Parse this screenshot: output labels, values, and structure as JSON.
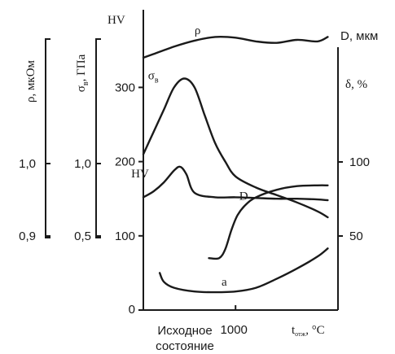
{
  "chart_data": {
    "type": "line",
    "xlabel_prefix": "t",
    "xlabel_sub": "отж",
    "xlabel_suffix": ", °C",
    "x_category": {
      "line1": "Исходное",
      "line2": "состояние"
    },
    "x_tick": "1000",
    "xlim": [
      550,
      1500
    ],
    "axes": {
      "rho": {
        "label": "ρ, мкОм",
        "ticks": [
          "1,0",
          "0,9"
        ],
        "tick_values": [
          1.0,
          0.9
        ]
      },
      "sigma": {
        "label_main": "σ",
        "label_sub": "в",
        "label_rest": ", ГПа",
        "ticks": [
          "1,0",
          "0,5"
        ],
        "tick_values": [
          1.0,
          0.5
        ]
      },
      "hv": {
        "label": "HV",
        "ticks": [
          "300",
          "200",
          "100",
          "0"
        ],
        "tick_values": [
          300,
          200,
          100,
          0
        ],
        "ylim": [
          0,
          400
        ]
      },
      "d": {
        "label": "D, мкм",
        "ticks": [],
        "tick_values": []
      },
      "delta": {
        "label": "δ, %",
        "ticks": [
          "100",
          "50"
        ],
        "tick_values": [
          100,
          50
        ]
      }
    },
    "series": [
      {
        "name": "ρ",
        "scale": "hv",
        "x": [
          550,
          600,
          700,
          800,
          900,
          1000,
          1100,
          1200,
          1300,
          1400,
          1450
        ],
        "y": [
          340,
          345,
          355,
          363,
          368,
          367,
          362,
          360,
          364,
          362,
          368
        ]
      },
      {
        "name": "σв",
        "scale": "hv",
        "x": [
          550,
          600,
          650,
          700,
          750,
          800,
          850,
          900,
          950,
          1000,
          1100,
          1200,
          1300,
          1400,
          1450
        ],
        "y": [
          210,
          240,
          270,
          300,
          312,
          300,
          262,
          225,
          200,
          180,
          165,
          155,
          145,
          133,
          125
        ]
      },
      {
        "name": "HV",
        "scale": "hv",
        "x": [
          550,
          600,
          650,
          700,
          730,
          760,
          800,
          900,
          1000,
          1100,
          1200,
          1300,
          1400,
          1450
        ],
        "y": [
          152,
          160,
          172,
          188,
          193,
          183,
          158,
          152,
          152,
          151,
          150,
          150,
          149,
          148
        ],
        "label_name": "HV"
      },
      {
        "name": "D",
        "scale": "hv",
        "x": [
          870,
          920,
          950,
          980,
          1010,
          1050,
          1100,
          1200,
          1300,
          1400,
          1450
        ],
        "y": [
          70,
          70,
          82,
          108,
          128,
          142,
          152,
          162,
          167,
          168,
          168
        ]
      },
      {
        "name": "a",
        "scale": "hv",
        "x": [
          630,
          650,
          700,
          800,
          900,
          1000,
          1100,
          1200,
          1300,
          1400,
          1450
        ],
        "y": [
          50,
          38,
          30,
          25,
          24,
          25,
          30,
          42,
          56,
          72,
          83
        ]
      }
    ],
    "grid": false,
    "legend": "none"
  }
}
